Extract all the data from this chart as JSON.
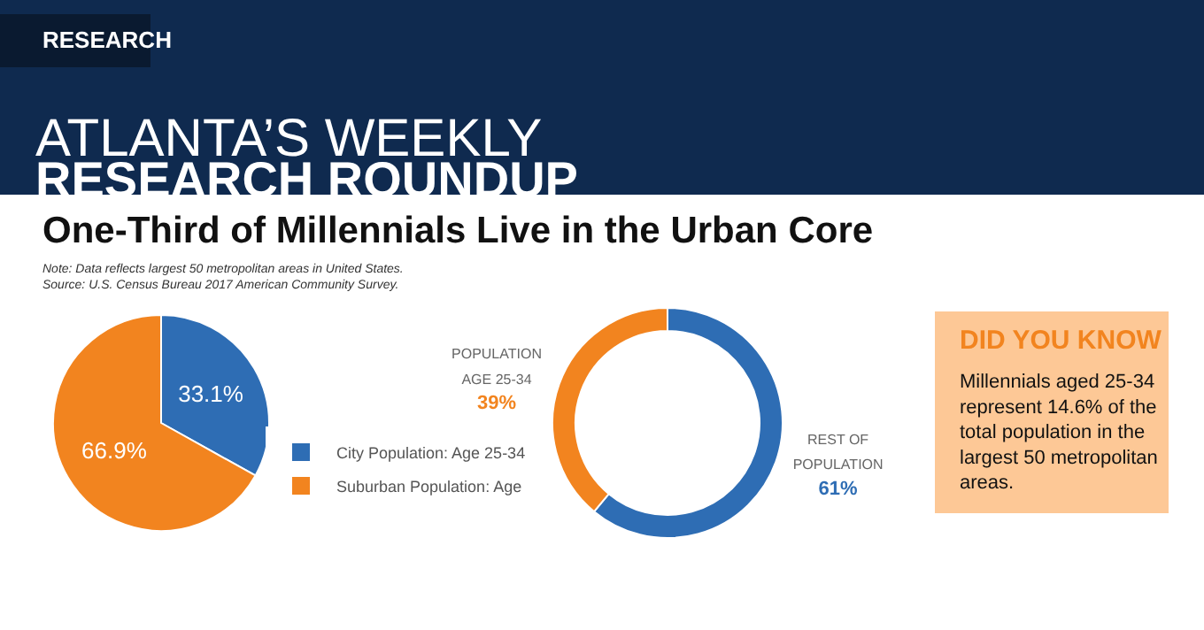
{
  "chart_data": [
    {
      "type": "pie",
      "title": "One-Third of Millennials Live in the Urban Core",
      "annotations": [
        "RESEARCH",
        "ATLANTA’S WEEKLY",
        "RESEARCH ROUNDUP",
        "Note: Data reflects largest 50 metropolitan areas in United States.",
        "Source: U.S. Census Bureau 2017 American Community Survey."
      ],
      "categories": [
        "City Population: Age 25-34",
        "Suburban Population: Age"
      ],
      "values": [
        33.1,
        66.9
      ],
      "colors": [
        "#2e6db4",
        "#f2841f"
      ],
      "value_labels": [
        "33.1%",
        "66.9%"
      ],
      "legend": "right"
    },
    {
      "type": "donut",
      "categories": [
        "REST OF POPULATION",
        "POPULATION AGE 25-34"
      ],
      "values": [
        61,
        39
      ],
      "colors": [
        "#2e6db4",
        "#f2841f"
      ],
      "value_labels": [
        "61%",
        "39%"
      ],
      "legend": false
    },
    {
      "type": "other",
      "title": "DID YOU KNOW",
      "annotations": [
        "Millennials aged 25-34 represent 14.6% of the total population in the largest 50 metropolitan areas."
      ]
    }
  ]
}
